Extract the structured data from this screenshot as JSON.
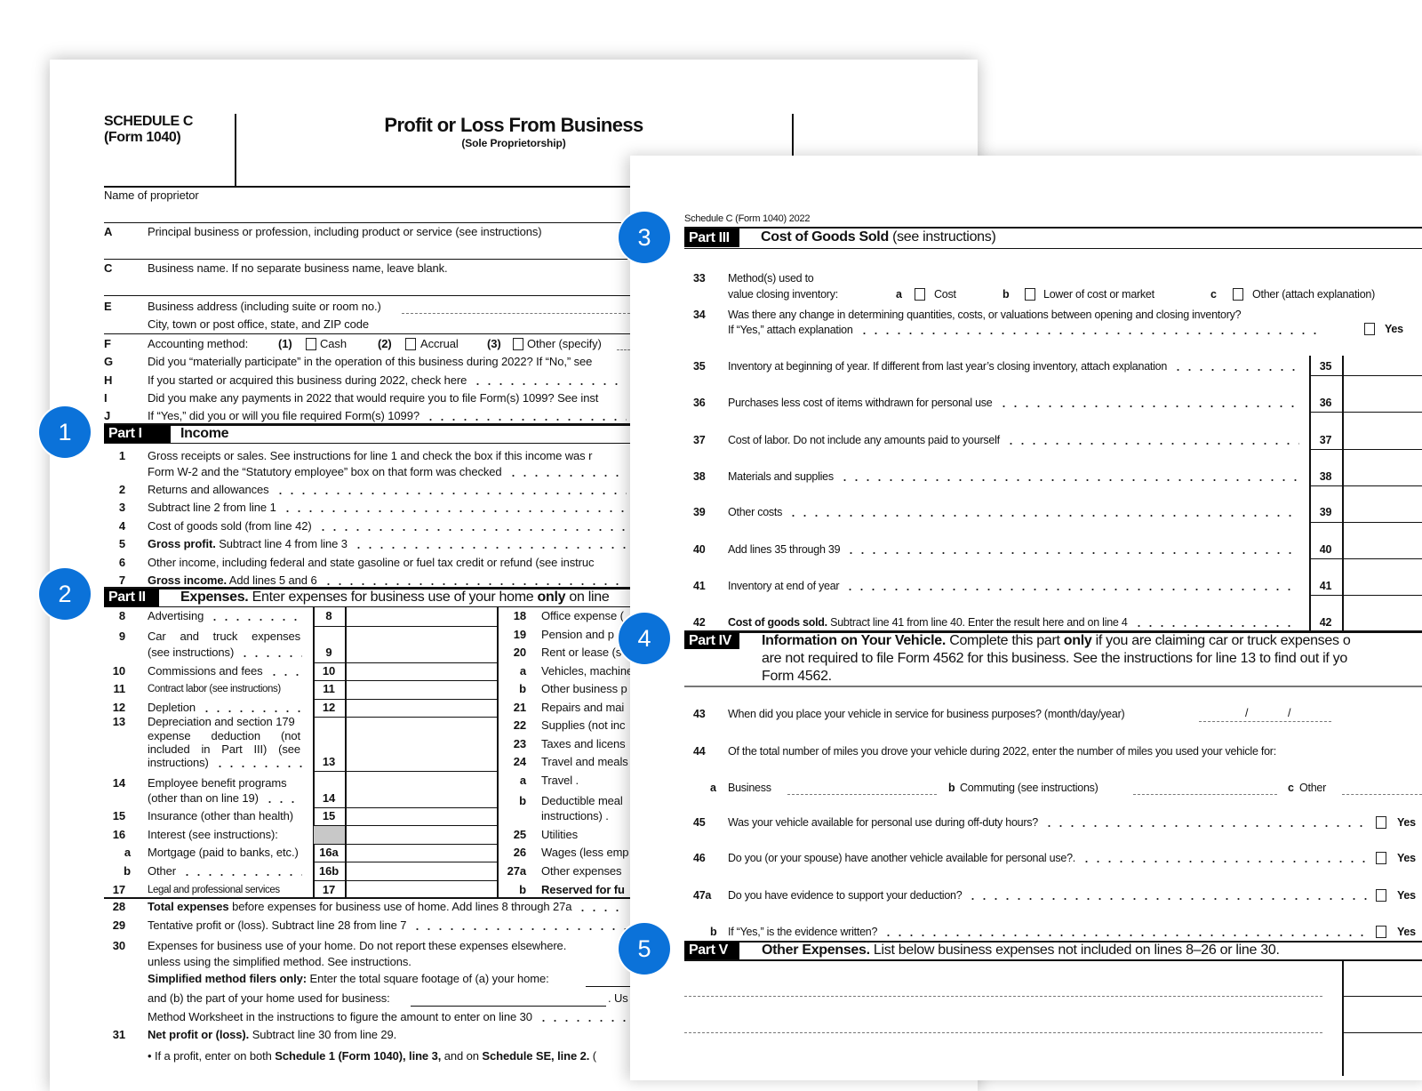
{
  "badges": [
    "1",
    "2",
    "3",
    "4",
    "5"
  ],
  "colors": {
    "badge": "#0b72d9",
    "part_tag": "#000000"
  },
  "back": {
    "schedule": "SCHEDULE C",
    "form": "(Form 1040)",
    "title": "Profit or Loss From Business",
    "subtitle": "(Sole Proprietorship)",
    "name_label": "Name of proprietor",
    "rows": [
      {
        "k": "A",
        "t": "Principal business or profession, including product or service (see instructions)"
      },
      {
        "k": "C",
        "t": "Business name. If no separate business name, leave blank."
      },
      {
        "k": "E",
        "t": "Business address (including suite or room no.)"
      },
      {
        "k": "",
        "t": "City, town or post office, state, and ZIP code"
      }
    ],
    "accounting": {
      "k": "F",
      "label": "Accounting method:",
      "opts": [
        {
          "n": "(1)",
          "l": "Cash"
        },
        {
          "n": "(2)",
          "l": "Accrual"
        },
        {
          "n": "(3)",
          "l": "Other (specify)"
        }
      ]
    },
    "questions": [
      {
        "k": "G",
        "t": "Did you “materially participate” in the operation of this business during 2022? If “No,” see"
      },
      {
        "k": "H",
        "t": "If you started or acquired this business during 2022, check here"
      },
      {
        "k": "I",
        "t": "Did you make any payments in 2022 that would require you to file Form(s) 1099? See inst"
      },
      {
        "k": "J",
        "t": "If “Yes,” did you or will you file required Form(s) 1099?"
      }
    ],
    "part1": {
      "tag": "Part I",
      "title": "Income"
    },
    "income": [
      {
        "n": "1",
        "t": "Gross receipts or sales. See instructions for line 1 and check the box if this income was r",
        "t2": "Form W-2 and the “Statutory employee” box on that form was checked"
      },
      {
        "n": "2",
        "t": "Returns and allowances"
      },
      {
        "n": "3",
        "t": "Subtract line 2 from line 1"
      },
      {
        "n": "4",
        "t": "Cost of goods sold (from line 42)"
      },
      {
        "n": "5",
        "t": [
          {
            "t": "Gross profit.",
            "b": true
          },
          {
            "t": " Subtract line 4 from line 3"
          }
        ]
      },
      {
        "n": "6",
        "t": "Other income, including federal and state gasoline or fuel tax credit or refund (see instruc"
      },
      {
        "n": "7",
        "t": [
          {
            "t": "Gross income.",
            "b": true
          },
          {
            "t": " Add lines 5 and 6"
          }
        ]
      }
    ],
    "part2": {
      "tag": "Part II",
      "title": [
        {
          "t": "Expenses.",
          "b": true
        },
        {
          "t": " Enter expenses for business use of your home "
        },
        {
          "t": "only",
          "b": true
        },
        {
          "t": " on line"
        }
      ]
    },
    "expenses_left": [
      {
        "n": "8",
        "t": "Advertising",
        "box": "8"
      },
      {
        "n": "9",
        "t": "Car and truck expenses",
        "t2": "(see instructions)",
        "box": "9"
      },
      {
        "n": "10",
        "t": "Commissions and fees",
        "box": "10"
      },
      {
        "n": "11",
        "t": "Contract labor (see instructions)",
        "box": "11"
      },
      {
        "n": "12",
        "t": "Depletion",
        "box": "12"
      },
      {
        "n": "13",
        "t": "Depreciation and section 179",
        "t2": "expense deduction (not",
        "t3": "included in Part III) (see",
        "t4": "instructions)",
        "box": "13"
      },
      {
        "n": "14",
        "t": "Employee benefit programs",
        "t2": "(other than on line 19)",
        "box": "14"
      },
      {
        "n": "15",
        "t": "Insurance (other than health)",
        "box": "15"
      },
      {
        "n": "16",
        "t": "Interest (see instructions):",
        "box": ""
      },
      {
        "n": "a",
        "t": "Mortgage (paid to banks, etc.)",
        "box": "16a"
      },
      {
        "n": "b",
        "t": "Other",
        "box": "16b"
      },
      {
        "n": "17",
        "t": "Legal and professional services",
        "box": "17"
      }
    ],
    "expenses_right": [
      {
        "n": "18",
        "t": "Office expense ("
      },
      {
        "n": "19",
        "t": "Pension and p"
      },
      {
        "n": "20",
        "t": "Rent or lease (s"
      },
      {
        "n": "a",
        "t": "Vehicles, machine"
      },
      {
        "n": "b",
        "t": "Other business p"
      },
      {
        "n": "21",
        "t": "Repairs and mai"
      },
      {
        "n": "22",
        "t": "Supplies (not inc"
      },
      {
        "n": "23",
        "t": "Taxes and licens"
      },
      {
        "n": "24",
        "t": "Travel and meals"
      },
      {
        "n": "a",
        "t": "Travel ."
      },
      {
        "n": "b",
        "t": "Deductible meal",
        "t2": "instructions) ."
      },
      {
        "n": "25",
        "t": "Utilities"
      },
      {
        "n": "26",
        "t": "Wages (less emp"
      },
      {
        "n": "27a",
        "t": "Other expenses"
      },
      {
        "n": "b",
        "t": [
          {
            "t": "Reserved for fu",
            "b": true
          }
        ]
      }
    ],
    "totals": [
      {
        "n": "28",
        "t": [
          {
            "t": "Total expenses",
            "b": true
          },
          {
            "t": " before expenses for business use of home. Add lines 8 through 27a"
          }
        ]
      },
      {
        "n": "29",
        "t": "Tentative profit or (loss). Subtract line 28 from line 7"
      },
      {
        "n": "30",
        "t": "Expenses for business use of your home. Do not report these expenses elsewhere.",
        "t2": "unless using the simplified method. See instructions.",
        "t3": [
          {
            "t": "Simplified method filers only:",
            "b": true
          },
          {
            "t": " Enter the total square footage of (a) your home:"
          }
        ],
        "t4": "and (b) the part of your home used for business:",
        "t4b": ". Us",
        "t5": "Method Worksheet in the instructions to figure the amount to enter on line 30"
      },
      {
        "n": "31",
        "t": [
          {
            "t": "Net profit or (loss).",
            "b": true
          },
          {
            "t": " Subtract line 30 from line 29."
          }
        ],
        "t2": [
          {
            "t": "• If a profit, enter on both "
          },
          {
            "t": "Schedule 1 (Form 1040), line 3,",
            "b": true
          },
          {
            "t": " and on "
          },
          {
            "t": "Schedule SE, line 2.",
            "b": true
          },
          {
            "t": " ("
          }
        ]
      }
    ]
  },
  "front": {
    "header": "Schedule C (Form 1040) 2022",
    "part3": {
      "tag": "Part III",
      "title": [
        {
          "t": "Cost of Goods Sold",
          "b": true
        },
        {
          "t": " (see instructions)"
        }
      ]
    },
    "line33": {
      "n": "33",
      "t": "Method(s) used to",
      "t2": "value closing inventory:",
      "opts": [
        {
          "k": "a",
          "l": "Cost"
        },
        {
          "k": "b",
          "l": "Lower of cost or market"
        },
        {
          "k": "c",
          "l": "Other (attach explanation)"
        }
      ]
    },
    "line34": {
      "n": "34",
      "t": "Was there any change in determining quantities, costs, or valuations between opening and closing inventory?",
      "t2": "If “Yes,” attach explanation",
      "yes": "Yes"
    },
    "cogs": [
      {
        "n": "35",
        "t": "Inventory at beginning of year. If different from last year’s closing inventory, attach explanation",
        "box": "35"
      },
      {
        "n": "36",
        "t": "Purchases less cost of items withdrawn for personal use",
        "box": "36"
      },
      {
        "n": "37",
        "t": "Cost of labor. Do not include any amounts paid to yourself",
        "box": "37"
      },
      {
        "n": "38",
        "t": "Materials and supplies",
        "box": "38"
      },
      {
        "n": "39",
        "t": "Other costs",
        "box": "39"
      },
      {
        "n": "40",
        "t": "Add lines 35 through 39",
        "box": "40"
      },
      {
        "n": "41",
        "t": "Inventory at end of year",
        "box": "41"
      },
      {
        "n": "42",
        "t": [
          {
            "t": "Cost of goods sold.",
            "b": true
          },
          {
            "t": " Subtract line 41 from line 40. Enter the result here and on line 4"
          }
        ],
        "box": "42"
      }
    ],
    "part4": {
      "tag": "Part IV",
      "lines": [
        [
          {
            "t": "Information on Your Vehicle.",
            "b": true
          },
          {
            "t": " Complete this part "
          },
          {
            "t": "only",
            "b": true
          },
          {
            "t": " if you are claiming car or truck expenses o"
          }
        ],
        "are not required to file Form 4562 for this business. See the instructions for line 13 to find out if yo",
        "Form 4562."
      ]
    },
    "line43": {
      "n": "43",
      "t": "When did you place your vehicle in service for business purposes? (month/day/year)",
      "sep": "/"
    },
    "line44": {
      "n": "44",
      "t": "Of the total number of miles you drove your vehicle during 2022, enter the number of miles you used your vehicle for:",
      "fields": [
        {
          "k": "a",
          "l": "Business"
        },
        {
          "k": "b",
          "l": "Commuting (see instructions)"
        },
        {
          "k": "c",
          "l": "Other"
        }
      ]
    },
    "yesno": [
      {
        "n": "45",
        "t": "Was your vehicle available for personal use during off-duty hours?",
        "yes": "Yes"
      },
      {
        "n": "46",
        "t": "Do you (or your spouse) have another vehicle available for personal use?.",
        "yes": "Yes"
      },
      {
        "n": "47a",
        "t": "Do you have evidence to support your deduction?",
        "yes": "Yes"
      },
      {
        "n": "b",
        "t": "If “Yes,” is the evidence written?",
        "yes": "Yes"
      }
    ],
    "part5": {
      "tag": "Part V",
      "title": [
        {
          "t": "Other Expenses.",
          "b": true
        },
        {
          "t": " List below business expenses not included on lines 8–26 or line 30."
        }
      ]
    }
  }
}
